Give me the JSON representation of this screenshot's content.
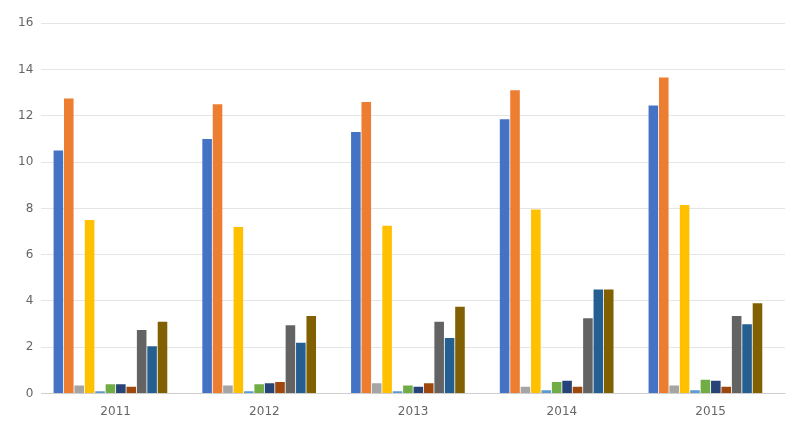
{
  "chart_data": {
    "type": "bar",
    "categories": [
      "2011",
      "2012",
      "2013",
      "2014",
      "2015"
    ],
    "series": [
      {
        "color": "#4472C4",
        "values": [
          10.5,
          11.0,
          11.3,
          11.85,
          12.45
        ]
      },
      {
        "color": "#ED7D31",
        "values": [
          12.75,
          12.5,
          12.6,
          13.1,
          13.65
        ]
      },
      {
        "color": "#A5A5A5",
        "values": [
          0.35,
          0.35,
          0.45,
          0.3,
          0.35
        ]
      },
      {
        "color": "#FFC000",
        "values": [
          7.5,
          7.2,
          7.25,
          7.95,
          8.15
        ]
      },
      {
        "color": "#5B9BD5",
        "values": [
          0.1,
          0.1,
          0.1,
          0.15,
          0.15
        ]
      },
      {
        "color": "#70AD47",
        "values": [
          0.4,
          0.4,
          0.35,
          0.5,
          0.6
        ]
      },
      {
        "color": "#264478",
        "values": [
          0.4,
          0.45,
          0.3,
          0.55,
          0.55
        ]
      },
      {
        "color": "#9E480E",
        "values": [
          0.3,
          0.5,
          0.45,
          0.3,
          0.3
        ]
      },
      {
        "color": "#636363",
        "values": [
          2.75,
          2.95,
          3.1,
          3.25,
          3.35
        ]
      },
      {
        "color": "#255E91",
        "values": [
          2.05,
          2.2,
          2.4,
          4.5,
          3.0
        ]
      },
      {
        "color": "#806000",
        "values": [
          3.1,
          3.35,
          3.75,
          4.5,
          3.9
        ]
      },
      {
        "color": "#43682B",
        "values": [
          0.0,
          0.0,
          0.0,
          0.0,
          0.0
        ]
      }
    ],
    "ylim": [
      0,
      16
    ],
    "yticks": [
      0,
      2,
      4,
      6,
      8,
      10,
      12,
      14,
      16
    ],
    "grid": true
  }
}
